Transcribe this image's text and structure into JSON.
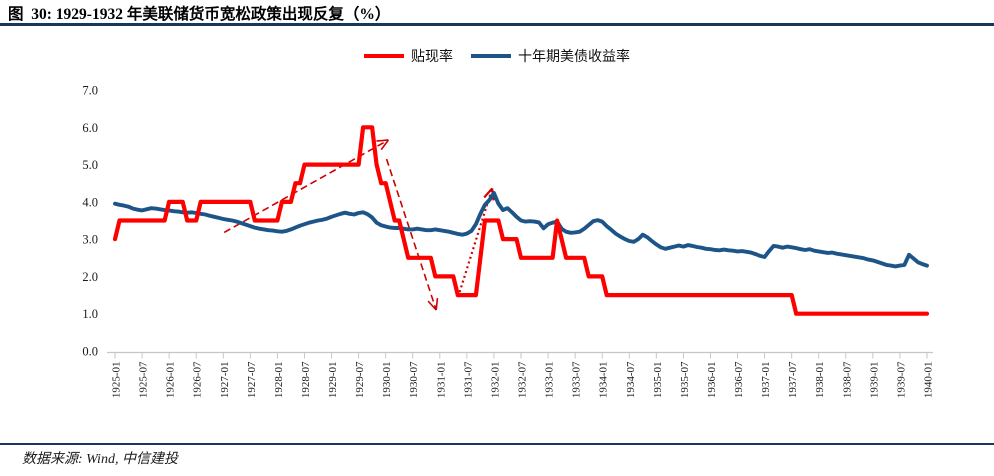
{
  "page": {
    "title": "图  30: 1929-1932 年美联储货币宽松政策出现反复（%）",
    "source": "数据来源: Wind, 中信建投"
  },
  "colors": {
    "discount_rate": "#FF0000",
    "treasury_yield": "#1D5588",
    "annotation": "#D10000",
    "rule": "#17375E",
    "axis": "#C6C6C6",
    "tick_text": "#1A1A1A",
    "title_text": "#000000"
  },
  "chart_data": {
    "type": "line",
    "title": "图 30: 1929-1932 年美联储货币宽松政策出现反复（%）",
    "xlabel": "",
    "ylabel": "",
    "ylim": [
      0,
      7
    ],
    "grid": false,
    "legend_position": "top-center",
    "x_start": "1925-01",
    "x_end": "1940-01",
    "x_step_months": 1,
    "x_tick_labels": [
      "1925-01",
      "1925-07",
      "1926-01",
      "1926-07",
      "1927-01",
      "1927-07",
      "1928-01",
      "1928-07",
      "1929-01",
      "1929-07",
      "1930-01",
      "1930-07",
      "1931-01",
      "1931-07",
      "1932-01",
      "1932-07",
      "1933-01",
      "1933-07",
      "1934-01",
      "1934-07",
      "1935-01",
      "1935-07",
      "1936-01",
      "1936-07",
      "1937-01",
      "1937-07",
      "1938-01",
      "1938-07",
      "1939-01",
      "1939-07",
      "1940-01"
    ],
    "y_tick_labels": [
      "0.0",
      "1.0",
      "2.0",
      "3.0",
      "4.0",
      "5.0",
      "6.0",
      "7.0"
    ],
    "series": [
      {
        "name": "贴现率",
        "color": "#FF0000",
        "values": [
          3.0,
          3.5,
          3.5,
          3.5,
          3.5,
          3.5,
          3.5,
          3.5,
          3.5,
          3.5,
          3.5,
          3.5,
          4.0,
          4.0,
          4.0,
          4.0,
          3.5,
          3.5,
          3.5,
          4.0,
          4.0,
          4.0,
          4.0,
          4.0,
          4.0,
          4.0,
          4.0,
          4.0,
          4.0,
          4.0,
          4.0,
          3.5,
          3.5,
          3.5,
          3.5,
          3.5,
          3.5,
          4.0,
          4.0,
          4.0,
          4.5,
          4.5,
          5.0,
          5.0,
          5.0,
          5.0,
          5.0,
          5.0,
          5.0,
          5.0,
          5.0,
          5.0,
          5.0,
          5.0,
          5.0,
          6.0,
          6.0,
          6.0,
          5.0,
          4.5,
          4.5,
          4.0,
          3.5,
          3.5,
          3.0,
          2.5,
          2.5,
          2.5,
          2.5,
          2.5,
          2.5,
          2.0,
          2.0,
          2.0,
          2.0,
          2.0,
          1.5,
          1.5,
          1.5,
          1.5,
          1.5,
          2.5,
          3.5,
          3.5,
          3.5,
          3.5,
          3.0,
          3.0,
          3.0,
          3.0,
          2.5,
          2.5,
          2.5,
          2.5,
          2.5,
          2.5,
          2.5,
          2.5,
          3.5,
          3.0,
          2.5,
          2.5,
          2.5,
          2.5,
          2.5,
          2.0,
          2.0,
          2.0,
          2.0,
          1.5,
          1.5,
          1.5,
          1.5,
          1.5,
          1.5,
          1.5,
          1.5,
          1.5,
          1.5,
          1.5,
          1.5,
          1.5,
          1.5,
          1.5,
          1.5,
          1.5,
          1.5,
          1.5,
          1.5,
          1.5,
          1.5,
          1.5,
          1.5,
          1.5,
          1.5,
          1.5,
          1.5,
          1.5,
          1.5,
          1.5,
          1.5,
          1.5,
          1.5,
          1.5,
          1.5,
          1.5,
          1.5,
          1.5,
          1.5,
          1.5,
          1.5,
          1.0,
          1.0,
          1.0,
          1.0,
          1.0,
          1.0,
          1.0,
          1.0,
          1.0,
          1.0,
          1.0,
          1.0,
          1.0,
          1.0,
          1.0,
          1.0,
          1.0,
          1.0,
          1.0,
          1.0,
          1.0,
          1.0,
          1.0,
          1.0,
          1.0,
          1.0,
          1.0,
          1.0,
          1.0,
          1.0
        ]
      },
      {
        "name": "十年期美债收益率",
        "color": "#1D5588",
        "values": [
          3.95,
          3.92,
          3.9,
          3.87,
          3.82,
          3.79,
          3.77,
          3.8,
          3.83,
          3.82,
          3.8,
          3.78,
          3.77,
          3.75,
          3.74,
          3.72,
          3.71,
          3.72,
          3.7,
          3.68,
          3.66,
          3.63,
          3.6,
          3.57,
          3.54,
          3.52,
          3.5,
          3.47,
          3.43,
          3.39,
          3.35,
          3.31,
          3.28,
          3.26,
          3.24,
          3.23,
          3.21,
          3.2,
          3.22,
          3.26,
          3.31,
          3.36,
          3.4,
          3.44,
          3.47,
          3.5,
          3.52,
          3.55,
          3.6,
          3.64,
          3.68,
          3.71,
          3.68,
          3.66,
          3.7,
          3.72,
          3.67,
          3.58,
          3.44,
          3.37,
          3.34,
          3.31,
          3.3,
          3.3,
          3.28,
          3.26,
          3.26,
          3.28,
          3.26,
          3.24,
          3.24,
          3.26,
          3.24,
          3.22,
          3.2,
          3.17,
          3.14,
          3.12,
          3.15,
          3.22,
          3.4,
          3.68,
          3.92,
          4.05,
          4.24,
          3.95,
          3.78,
          3.83,
          3.72,
          3.6,
          3.5,
          3.47,
          3.48,
          3.47,
          3.45,
          3.29,
          3.4,
          3.44,
          3.47,
          3.28,
          3.2,
          3.17,
          3.18,
          3.2,
          3.28,
          3.38,
          3.48,
          3.51,
          3.47,
          3.35,
          3.25,
          3.15,
          3.07,
          3.0,
          2.95,
          2.93,
          3.0,
          3.12,
          3.05,
          2.95,
          2.86,
          2.78,
          2.74,
          2.77,
          2.8,
          2.83,
          2.8,
          2.84,
          2.82,
          2.79,
          2.77,
          2.74,
          2.73,
          2.71,
          2.7,
          2.72,
          2.7,
          2.69,
          2.67,
          2.68,
          2.66,
          2.64,
          2.6,
          2.55,
          2.52,
          2.68,
          2.82,
          2.8,
          2.77,
          2.8,
          2.78,
          2.76,
          2.73,
          2.71,
          2.73,
          2.69,
          2.67,
          2.65,
          2.63,
          2.64,
          2.61,
          2.59,
          2.57,
          2.55,
          2.53,
          2.51,
          2.49,
          2.45,
          2.43,
          2.39,
          2.35,
          2.31,
          2.29,
          2.27,
          2.29,
          2.31,
          2.58,
          2.48,
          2.38,
          2.33,
          2.29
        ]
      }
    ],
    "annotations": [
      {
        "style": "dashed",
        "color": "#D10000",
        "from_month": 24.2,
        "from_value": 3.18,
        "to_month": 60.6,
        "to_value": 5.66
      },
      {
        "style": "dashed",
        "color": "#D10000",
        "from_month": 60.2,
        "from_value": 5.15,
        "to_month": 71.2,
        "to_value": 1.1
      },
      {
        "style": "dotted",
        "color": "#D10000",
        "from_month": 76.4,
        "from_value": 1.58,
        "to_month": 83.6,
        "to_value": 4.36
      }
    ]
  }
}
